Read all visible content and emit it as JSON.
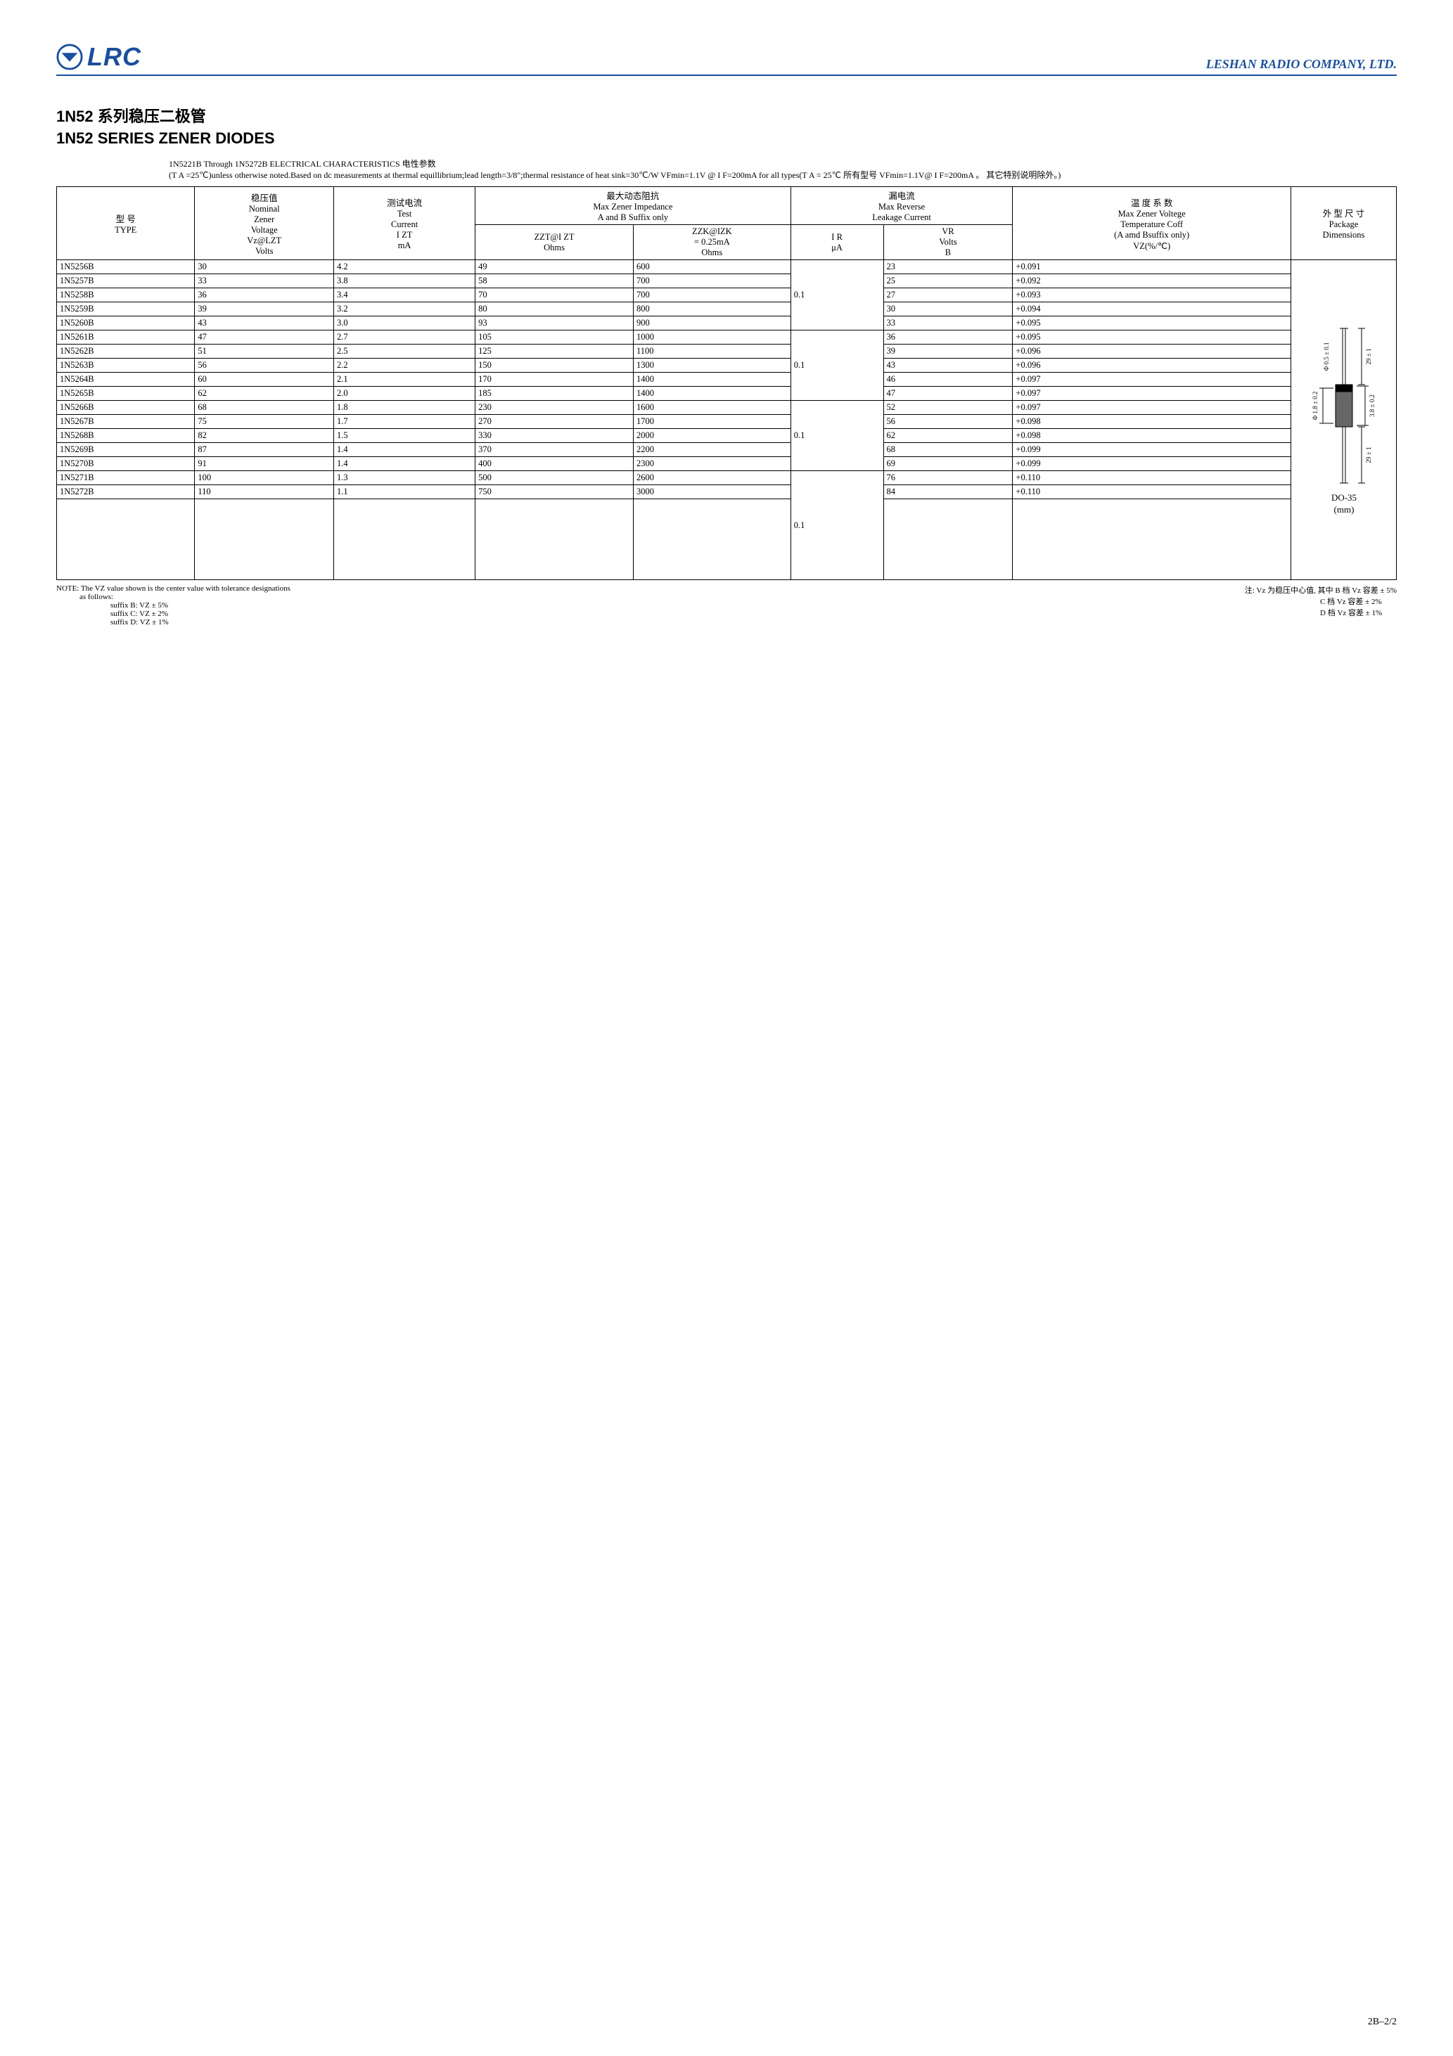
{
  "header": {
    "logo_text": "LRC",
    "company": "LESHAN RADIO COMPANY, LTD.",
    "logo_color": "#1b4f9c",
    "rule_color": "#1b4f9c"
  },
  "title": {
    "zh": "1N52 系列稳压二极管",
    "en": "1N52 SERIES ZENER DIODES"
  },
  "subtext": {
    "line1": "1N5221B Through 1N5272B ELECTRICAL CHARACTERISTICS 电性参数",
    "line2": "(T A =25℃)unless otherwise noted.Based on dc measurements at thermal equillibrium;lead length=3/8\";thermal resistance of heat sink=30℃/W  VFmin=1.1V @ I F=200mA for all types(T A = 25℃ 所有型号 VFmin=1.1V@ I F=200mA 。 其它特别说明除外。)"
  },
  "table": {
    "headers": {
      "type_zh": "型  号",
      "type_en": "TYPE",
      "vz_zh": "稳压值",
      "vz_en1": "Nominal",
      "vz_en2": "Zener",
      "vz_en3": "Voltage",
      "vz_sym": "Vz@LZT",
      "vz_unit": "Volts",
      "izt_zh": "测试电流",
      "izt_en1": "Test",
      "izt_en2": "Current",
      "izt_sym": "I ZT",
      "izt_unit": "mA",
      "imp_zh": "最大动态阻抗",
      "imp_en1": "Max Zener Impedance",
      "imp_en2": "A and B Suffix only",
      "zzt_sym": "ZZT@I ZT",
      "zzt_unit": "Ohms",
      "zzk_sym": "ZZK@IZK",
      "zzk_eq": "= 0.25mA",
      "zzk_unit": "Ohms",
      "leak_zh": "漏电流",
      "leak_en1": "Max Reverse",
      "leak_en2": "Leakage Current",
      "ir_sym": "I R",
      "ir_unit": "μA",
      "vr_sym": "VR",
      "vr_unit1": "Volts",
      "vr_unit2": "B",
      "tc_zh": "温 度 系 数",
      "tc_en1": "Max Zener Voltege",
      "tc_en2": "Temperature Coff",
      "tc_en3": "(A amd Bsuffix only)",
      "tc_sym": "VZ(%/℃)",
      "pkg_zh": "外 型 尺 寸",
      "pkg_en1": "Package",
      "pkg_en2": "Dimensions"
    },
    "groups": [
      {
        "ir": "0.1",
        "rows": [
          {
            "type": "1N5256B",
            "vz": "30",
            "izt": "4.2",
            "zzt": "49",
            "zzk": "600",
            "vr": "23",
            "tc": "+0.091"
          },
          {
            "type": "1N5257B",
            "vz": "33",
            "izt": "3.8",
            "zzt": "58",
            "zzk": "700",
            "vr": "25",
            "tc": "+0.092"
          },
          {
            "type": "1N5258B",
            "vz": "36",
            "izt": "3.4",
            "zzt": "70",
            "zzk": "700",
            "vr": "27",
            "tc": "+0.093"
          },
          {
            "type": "1N5259B",
            "vz": "39",
            "izt": "3.2",
            "zzt": "80",
            "zzk": "800",
            "vr": "30",
            "tc": "+0.094"
          },
          {
            "type": "1N5260B",
            "vz": "43",
            "izt": "3.0",
            "zzt": "93",
            "zzk": "900",
            "vr": "33",
            "tc": "+0.095"
          }
        ]
      },
      {
        "ir": "0.1",
        "rows": [
          {
            "type": "1N5261B",
            "vz": "47",
            "izt": "2.7",
            "zzt": "105",
            "zzk": "1000",
            "vr": "36",
            "tc": "+0.095"
          },
          {
            "type": "1N5262B",
            "vz": "51",
            "izt": "2.5",
            "zzt": "125",
            "zzk": "1100",
            "vr": "39",
            "tc": "+0.096"
          },
          {
            "type": "1N5263B",
            "vz": "56",
            "izt": "2.2",
            "zzt": "150",
            "zzk": "1300",
            "vr": "43",
            "tc": "+0.096"
          },
          {
            "type": "1N5264B",
            "vz": "60",
            "izt": "2.1",
            "zzt": "170",
            "zzk": "1400",
            "vr": "46",
            "tc": "+0.097"
          },
          {
            "type": "1N5265B",
            "vz": "62",
            "izt": "2.0",
            "zzt": "185",
            "zzk": "1400",
            "vr": "47",
            "tc": "+0.097"
          }
        ]
      },
      {
        "ir": "0.1",
        "rows": [
          {
            "type": "1N5266B",
            "vz": "68",
            "izt": "1.8",
            "zzt": "230",
            "zzk": "1600",
            "vr": "52",
            "tc": "+0.097"
          },
          {
            "type": "1N5267B",
            "vz": "75",
            "izt": "1.7",
            "zzt": "270",
            "zzk": "1700",
            "vr": "56",
            "tc": "+0.098"
          },
          {
            "type": "1N5268B",
            "vz": "82",
            "izt": "1.5",
            "zzt": "330",
            "zzk": "2000",
            "vr": "62",
            "tc": "+0.098"
          },
          {
            "type": "1N5269B",
            "vz": "87",
            "izt": "1.4",
            "zzt": "370",
            "zzk": "2200",
            "vr": "68",
            "tc": "+0.099"
          },
          {
            "type": "1N5270B",
            "vz": "91",
            "izt": "1.4",
            "zzt": "400",
            "zzk": "2300",
            "vr": "69",
            "tc": "+0.099"
          }
        ]
      },
      {
        "ir": "0.1",
        "rows": [
          {
            "type": "1N5271B",
            "vz": "100",
            "izt": "1.3",
            "zzt": "500",
            "zzk": "2600",
            "vr": "76",
            "tc": "+0.110"
          },
          {
            "type": "1N5272B",
            "vz": "110",
            "izt": "1.1",
            "zzt": "750",
            "zzk": "3000",
            "vr": "84",
            "tc": "+0.110"
          }
        ],
        "padRows": 6
      }
    ],
    "pkg": {
      "do35": "DO-35",
      "mm": "(mm)",
      "dim_lead_d": "Φ 0.5 ± 0.1",
      "dim_lead_l": "29 ± 1",
      "dim_body_d": "Φ 1.8 ± 0.2",
      "dim_body_l": "3.8 ± 0.2",
      "dim_lead_l2": "29 ± 1"
    }
  },
  "note": {
    "left1": "NOTE: The VZ value shown is the center value with tolerance designations",
    "left2": "as  follows:",
    "left3": "suffix B:  VZ ± 5%",
    "left4": "suffix C:  VZ ± 2%",
    "left5": "suffix D:  VZ ± 1%",
    "right1": "注:  Vz 为稳压中心值,  其中 B 档 Vz 容差 ± 5%",
    "right2": "C 档 Vz 容差 ± 2%",
    "right3": "D 档 Vz 容差 ± 1%"
  },
  "footer": "2B–2/2"
}
